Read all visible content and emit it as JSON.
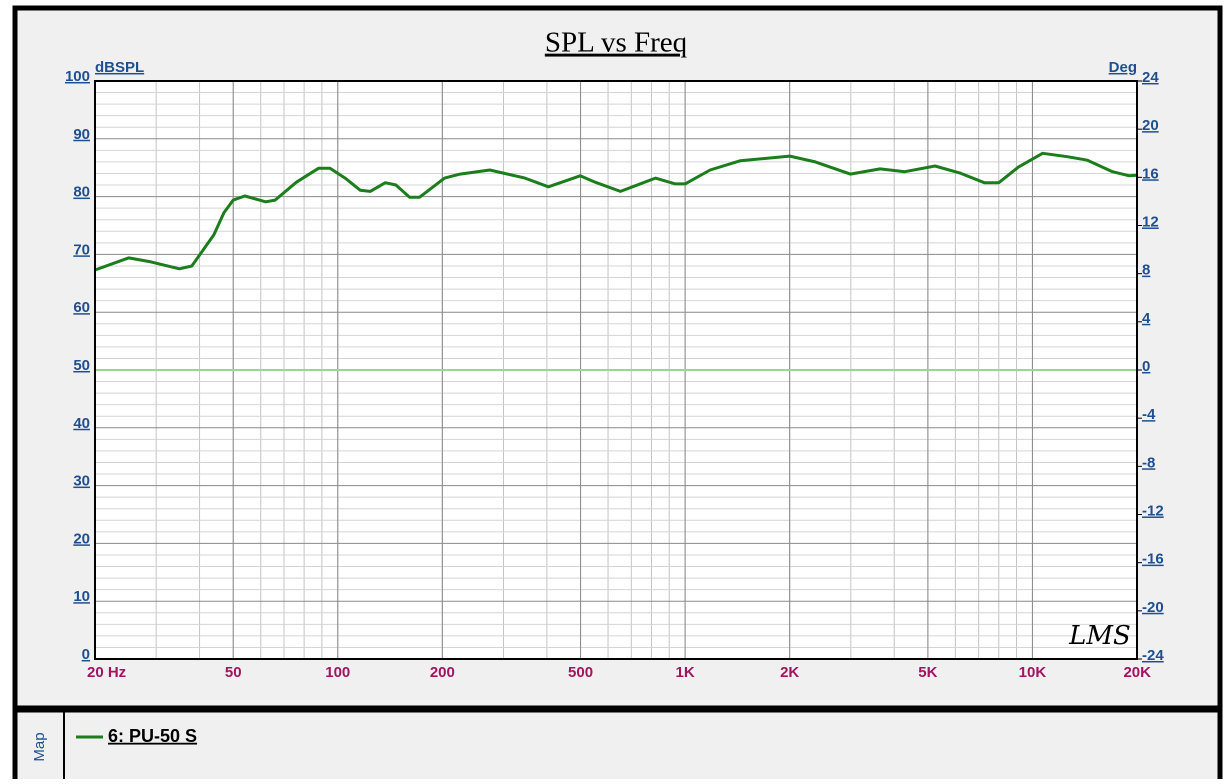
{
  "chart_data": {
    "type": "line",
    "title": "SPL vs Freq",
    "y_label": "dBSPL",
    "y2_label": "Deg",
    "xlog": true,
    "xlim": [
      20,
      20000
    ],
    "xticks": [
      {
        "value": 20,
        "label": "20 Hz"
      },
      50,
      100,
      200,
      500,
      {
        "value": 1000,
        "label": "1K"
      },
      {
        "value": 2000,
        "label": "2K"
      },
      {
        "value": 5000,
        "label": "5K"
      },
      {
        "value": 10000,
        "label": "10K"
      },
      {
        "value": 20000,
        "label": "20K"
      }
    ],
    "ylim": [
      0,
      100
    ],
    "yticks": [
      0,
      10,
      20,
      30,
      40,
      50,
      60,
      70,
      80,
      90,
      100
    ],
    "y2lim": [
      -24,
      24
    ],
    "y2ticks": [
      -24,
      -20,
      -16,
      -12,
      -8,
      -4,
      0,
      4,
      8,
      12,
      16,
      20,
      24
    ],
    "grid": true,
    "minor_grid": true,
    "series": [
      {
        "name": "6: PU-50 S",
        "color": "#1b7d1b",
        "x": [
          20,
          25,
          29,
          35,
          38,
          40,
          44,
          47,
          50,
          54,
          62,
          66,
          76,
          88,
          95,
          105,
          116,
          124,
          137,
          147,
          161,
          172,
          203,
          225,
          274,
          346,
          404,
          499,
          551,
          651,
          821,
          937,
          1000,
          1180,
          1440,
          2000,
          2370,
          2990,
          3640,
          4290,
          5240,
          6170,
          7270,
          8000,
          9110,
          10700,
          12600,
          14400,
          17000,
          19000,
          20000
        ],
        "values": [
          67.3,
          69.4,
          68.7,
          67.5,
          68.0,
          69.9,
          73.4,
          77.2,
          79.4,
          80.1,
          79.1,
          79.4,
          82.5,
          84.9,
          84.9,
          83.2,
          81.1,
          80.9,
          82.4,
          82.0,
          79.9,
          79.9,
          83.2,
          83.9,
          84.6,
          83.2,
          81.7,
          83.6,
          82.5,
          80.9,
          83.2,
          82.2,
          82.2,
          84.6,
          86.2,
          87.0,
          86.0,
          83.9,
          84.8,
          84.3,
          85.3,
          84.1,
          82.4,
          82.4,
          85.1,
          87.5,
          86.9,
          86.3,
          84.3,
          83.6,
          83.7
        ]
      },
      {
        "color": "#94d894",
        "axis": "y2",
        "x": [
          20,
          20000
        ],
        "values": [
          0,
          0
        ]
      }
    ]
  },
  "panel_label": "Map",
  "watermark": "LMS"
}
